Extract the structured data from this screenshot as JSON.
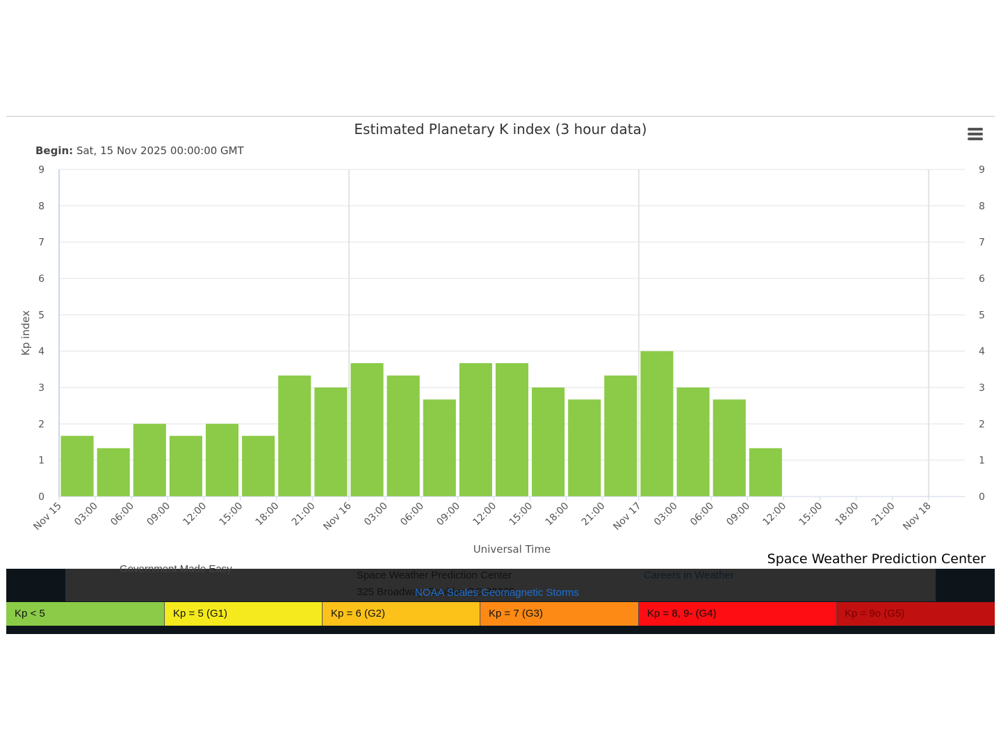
{
  "chart_data": {
    "type": "bar",
    "title": "Estimated Planetary K index (3 hour data)",
    "subtitle_label": "Begin:",
    "subtitle_value": "Sat, 15 Nov 2025 00:00:00 GMT",
    "xlabel": "Universal Time",
    "ylabel": "Kp index",
    "ylim": [
      0,
      9
    ],
    "y_ticks": [
      "0",
      "1",
      "2",
      "3",
      "4",
      "5",
      "6",
      "7",
      "8",
      "9"
    ],
    "x_ticks": [
      "Nov 15",
      "03:00",
      "06:00",
      "09:00",
      "12:00",
      "15:00",
      "18:00",
      "21:00",
      "Nov 16",
      "03:00",
      "06:00",
      "09:00",
      "12:00",
      "15:00",
      "18:00",
      "21:00",
      "Nov 17",
      "03:00",
      "06:00",
      "09:00",
      "12:00",
      "15:00",
      "18:00",
      "21:00",
      "Nov 18"
    ],
    "categories": [
      "Nov 15 00:00",
      "Nov 15 03:00",
      "Nov 15 06:00",
      "Nov 15 09:00",
      "Nov 15 12:00",
      "Nov 15 15:00",
      "Nov 15 18:00",
      "Nov 15 21:00",
      "Nov 16 00:00",
      "Nov 16 03:00",
      "Nov 16 06:00",
      "Nov 16 09:00",
      "Nov 16 12:00",
      "Nov 16 15:00",
      "Nov 16 18:00",
      "Nov 16 21:00",
      "Nov 17 00:00",
      "Nov 17 03:00",
      "Nov 17 06:00",
      "Nov 17 09:00"
    ],
    "values": [
      1.67,
      1.33,
      2.0,
      1.67,
      2.0,
      1.67,
      3.33,
      3.0,
      3.67,
      3.33,
      2.67,
      3.67,
      3.67,
      3.0,
      2.67,
      3.33,
      4.0,
      3.0,
      2.67,
      1.33
    ],
    "bar_color": "#8bcb48",
    "grid": true,
    "legend": []
  },
  "credit": "Space Weather Prediction Center",
  "footer": {
    "line1": "Space Weather Prediction Center",
    "line2": "325 Broadway, Boulder CO 80305",
    "careers": "Careers in Weather",
    "link": "NOAA Scales Geomagnetic Storms",
    "gov": "Government  Made Easy"
  },
  "scale_legend": [
    {
      "label": "Kp < 5",
      "color": "#8bcb48",
      "text_color": "#111111"
    },
    {
      "label": "Kp = 5 (G1)",
      "color": "#f5ea1d",
      "text_color": "#111111"
    },
    {
      "label": "Kp = 6 (G2)",
      "color": "#fcc21a",
      "text_color": "#111111"
    },
    {
      "label": "Kp = 7 (G3)",
      "color": "#fd8a15",
      "text_color": "#111111"
    },
    {
      "label": "Kp = 8, 9- (G4)",
      "color": "#fe0d12",
      "text_color": "#111111"
    },
    {
      "label": "Kp = 9o (G5)",
      "color": "#c01010",
      "text_color": "#7a0000"
    }
  ]
}
